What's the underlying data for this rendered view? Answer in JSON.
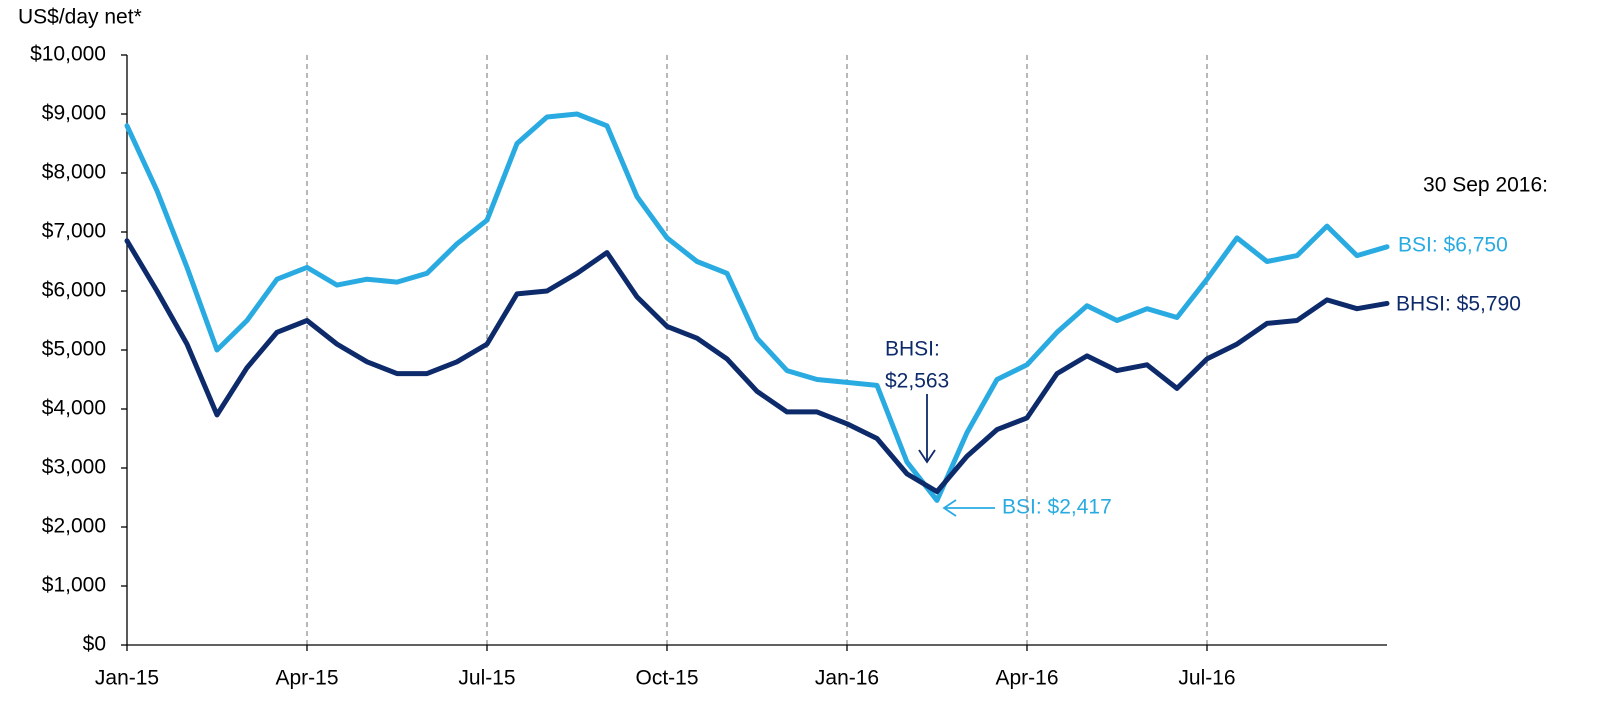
{
  "chart_data": {
    "type": "line",
    "ylabel": "US$/day net*",
    "x": [
      0,
      0.5,
      1,
      1.5,
      2,
      2.5,
      3,
      3.5,
      4,
      4.5,
      5,
      5.5,
      6,
      6.5,
      7,
      7.5,
      8,
      8.5,
      9,
      9.5,
      10,
      10.5,
      11,
      11.5,
      12,
      12.5,
      13,
      13.5,
      14,
      14.5,
      15,
      15.5,
      16,
      16.5,
      17,
      17.5,
      18,
      18.5,
      19,
      19.5,
      20,
      20.5,
      21
    ],
    "series": [
      {
        "name": "BSI",
        "color": "#29abe2",
        "values": [
          8800,
          7700,
          6400,
          5000,
          5500,
          6200,
          6400,
          6100,
          6200,
          6150,
          6300,
          6800,
          7200,
          8500,
          8950,
          9000,
          8800,
          7600,
          6900,
          6500,
          6300,
          5200,
          4650,
          4500,
          4450,
          4400,
          3100,
          2450,
          3600,
          4500,
          4750,
          5300,
          5750,
          5500,
          5700,
          5550,
          6200,
          6900,
          6500,
          6600,
          7100,
          6600,
          6750
        ]
      },
      {
        "name": "BHSI",
        "color": "#0d2a6b",
        "values": [
          6850,
          6000,
          5100,
          3900,
          4700,
          5300,
          5500,
          5100,
          4800,
          4600,
          4600,
          4800,
          5100,
          5950,
          6000,
          6300,
          6650,
          5900,
          5400,
          5200,
          4850,
          4300,
          3950,
          3950,
          3750,
          3500,
          2900,
          2600,
          3200,
          3650,
          3850,
          4600,
          4900,
          4650,
          4750,
          4350,
          4850,
          5100,
          5450,
          5500,
          5850,
          5700,
          5790
        ]
      }
    ],
    "xlim": [
      0,
      21
    ],
    "xticks": [
      {
        "value": 0,
        "label": "Jan-15"
      },
      {
        "value": 3,
        "label": "Apr-15"
      },
      {
        "value": 6,
        "label": "Jul-15"
      },
      {
        "value": 9,
        "label": "Oct-15"
      },
      {
        "value": 12,
        "label": "Jan-16"
      },
      {
        "value": 15,
        "label": "Apr-16"
      },
      {
        "value": 18,
        "label": "Jul-16"
      }
    ],
    "ylim": [
      0,
      10000
    ],
    "yticks": [
      {
        "value": 0,
        "label": "$0"
      },
      {
        "value": 1000,
        "label": "$1,000"
      },
      {
        "value": 2000,
        "label": "$2,000"
      },
      {
        "value": 3000,
        "label": "$3,000"
      },
      {
        "value": 4000,
        "label": "$4,000"
      },
      {
        "value": 5000,
        "label": "$5,000"
      },
      {
        "value": 6000,
        "label": "$6,000"
      },
      {
        "value": 7000,
        "label": "$7,000"
      },
      {
        "value": 8000,
        "label": "$8,000"
      },
      {
        "value": 9000,
        "label": "$9,000"
      },
      {
        "value": 10000,
        "label": "$10,000"
      }
    ],
    "grid": "x",
    "annotations": {
      "date": "30 Sep 2016:",
      "bsi_end": "BSI: $6,750",
      "bhsi_end": "BHSI: $5,790",
      "bhsi_low": [
        "BHSI:",
        "$2,563"
      ],
      "bsi_low": "BSI: $2,417"
    }
  }
}
